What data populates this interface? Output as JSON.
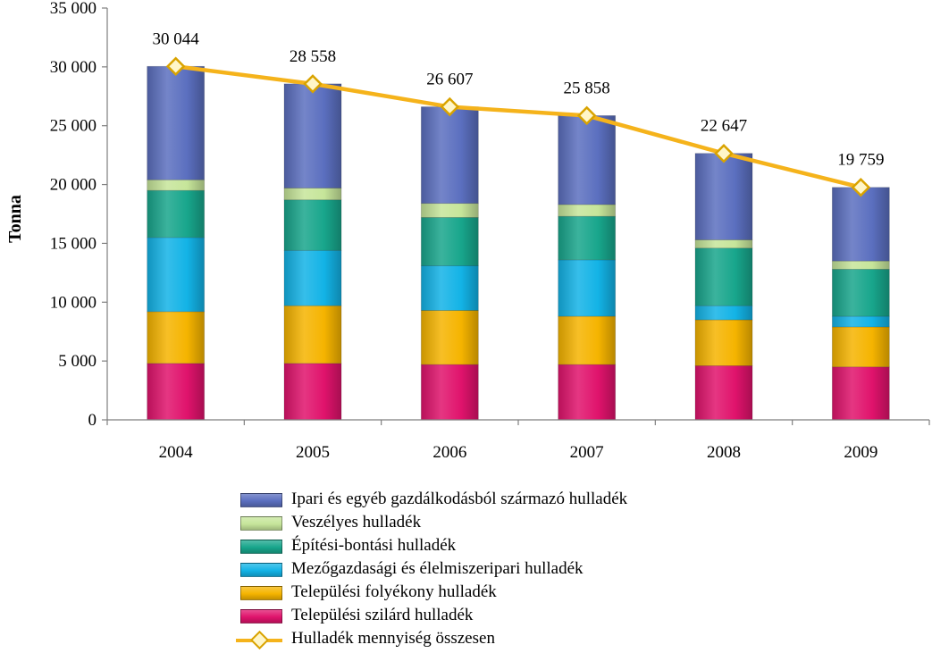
{
  "chart_data": {
    "type": "bar",
    "stacked": true,
    "categories": [
      "2004",
      "2005",
      "2006",
      "2007",
      "2008",
      "2009"
    ],
    "ylabel": "Tonna",
    "ylim": [
      0,
      35000
    ],
    "yticks": [
      0,
      5000,
      10000,
      15000,
      20000,
      25000,
      30000,
      35000
    ],
    "ytick_labels": [
      "0",
      "5 000",
      "10 000",
      "15 000",
      "20 000",
      "25 000",
      "30 000",
      "35 000"
    ],
    "legend_position": "bottom",
    "series": [
      {
        "name": "Települési szilárd hulladék",
        "color": "#e0136c",
        "values": [
          4800,
          4800,
          4700,
          4700,
          4600,
          4500
        ]
      },
      {
        "name": "Települési folyékony hulladék",
        "color": "#f5b400",
        "values": [
          4400,
          4900,
          4600,
          4100,
          3900,
          3400
        ]
      },
      {
        "name": "Mezőgazdasági és élelmiszeripari hulladék",
        "color": "#13b3e6",
        "values": [
          6300,
          4700,
          3800,
          4800,
          1200,
          900
        ]
      },
      {
        "name": "Építési-bontási hulladék",
        "color": "#18a68c",
        "values": [
          4000,
          4300,
          4100,
          3700,
          4900,
          4000
        ]
      },
      {
        "name": "Veszélyes hulladék",
        "color": "#c6e59a",
        "values": [
          900,
          1000,
          1200,
          1000,
          700,
          700
        ]
      },
      {
        "name": "Ipari és egyéb gazdálkodásból származó hulladék",
        "color": "#5b6fbf",
        "values": [
          9644,
          8858,
          8207,
          7558,
          7347,
          6259
        ]
      }
    ],
    "line_series": {
      "name": "Hulladék mennyiség összesen",
      "color": "#f5b31b",
      "values": [
        30044,
        28558,
        26607,
        25858,
        22647,
        19759
      ],
      "labels": [
        "30 044",
        "28 558",
        "26 607",
        "25 858",
        "22 647",
        "19 759"
      ]
    },
    "legend_order": [
      "Ipari és egyéb gazdálkodásból származó hulladék",
      "Veszélyes hulladék",
      "Építési-bontási hulladék",
      "Mezőgazdasági és élelmiszeripari hulladék",
      "Települési folyékony hulladék",
      "Települési szilárd hulladék"
    ]
  }
}
